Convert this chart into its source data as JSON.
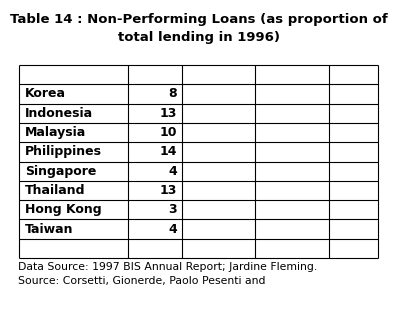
{
  "title_line1": "Table 14 : Non-Performing Loans (as proportion of",
  "title_line2": "total lending in 1996)",
  "rows": [
    [
      "Korea",
      "8"
    ],
    [
      "Indonesia",
      "13"
    ],
    [
      "Malaysia",
      "10"
    ],
    [
      "Philippines",
      "14"
    ],
    [
      "Singapore",
      "4"
    ],
    [
      "Thailand",
      "13"
    ],
    [
      "Hong Kong",
      "3"
    ],
    [
      "Taiwan",
      "4"
    ]
  ],
  "num_cols": 5,
  "footer_line1": "Data Source: 1997 BIS Annual Report; Jardine Fleming.",
  "footer_line2": "Source: Corsetti, Gionerde, Paolo Pesenti and",
  "background_color": "#ffffff",
  "title_fontsize": 9.5,
  "cell_fontsize": 9.0,
  "footer_fontsize": 7.8,
  "title_fontweight": "bold",
  "cell_fontweight": "bold"
}
